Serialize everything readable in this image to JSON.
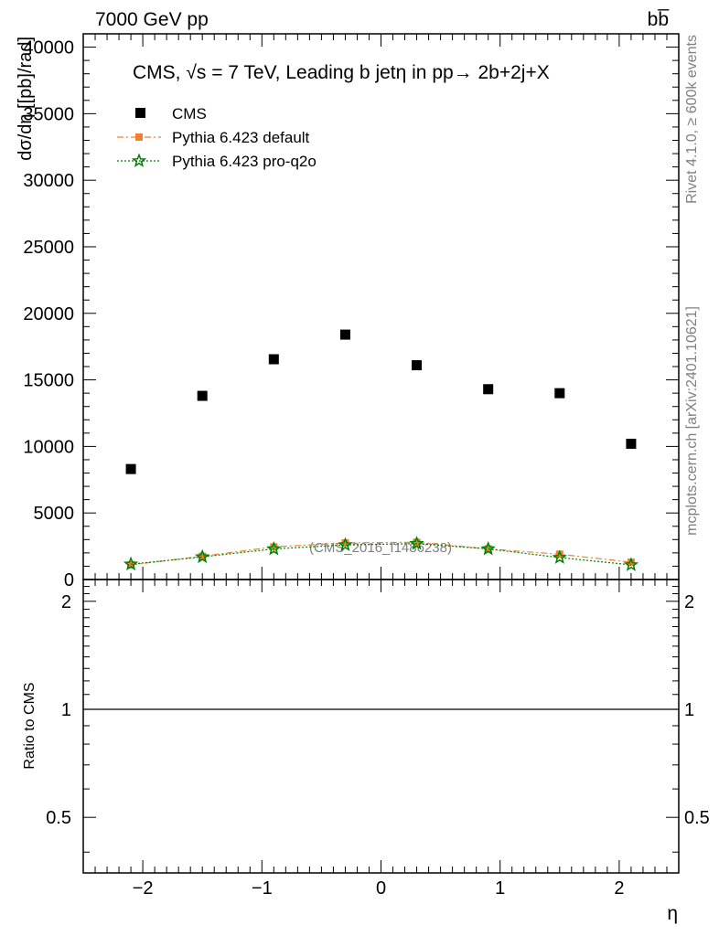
{
  "header": {
    "left": "7000 GeV pp",
    "right": "bb̅"
  },
  "side_labels": {
    "rivet": "Rivet 4.1.0, ≥ 600k events",
    "mcplots": "mcplots.cern.ch [arXiv:2401.10621]"
  },
  "chart_data": {
    "type": "scatter",
    "title": "CMS, √s = 7 TeV, Leading b jetη in pp→  2b+2j+X",
    "watermark": "(CMS_2016_I1486238)",
    "xlabel": "η",
    "ylabel": "dσ/dη [[pb]/rad]",
    "ratio_ylabel": "Ratio to CMS",
    "xlim": [
      -2.5,
      2.5
    ],
    "ylim": [
      0,
      41000
    ],
    "ratio_ylim": [
      0.35,
      2.3
    ],
    "x_ticks": [
      -2,
      -1,
      0,
      1,
      2
    ],
    "x_tick_labels": [
      "−2",
      "−1",
      "0",
      "1",
      "2"
    ],
    "y_ticks": [
      0,
      5000,
      10000,
      15000,
      20000,
      25000,
      30000,
      35000,
      40000
    ],
    "y_tick_labels": [
      "0",
      "5000",
      "10000",
      "15000",
      "20000",
      "25000",
      "30000",
      "35000",
      "40000"
    ],
    "ratio_ticks": [
      0.5,
      1,
      2
    ],
    "ratio_tick_labels": [
      "0.5",
      "1",
      "2"
    ],
    "x": [
      -2.1,
      -1.5,
      -0.9,
      -0.3,
      0.3,
      0.9,
      1.5,
      2.1
    ],
    "series": [
      {
        "name": "CMS",
        "color": "#000000",
        "marker": "square",
        "values": [
          8300,
          13800,
          16550,
          18400,
          16100,
          14300,
          14000,
          10200
        ]
      },
      {
        "name": "Pythia 6.423 default",
        "color": "#f08030",
        "marker": "filled-square",
        "line": "dash-dot",
        "values": [
          1100,
          1750,
          2450,
          2750,
          2800,
          2300,
          1900,
          1300
        ]
      },
      {
        "name": "Pythia 6.423 pro-q2o",
        "color": "#008000",
        "marker": "open-star",
        "line": "dotted",
        "values": [
          1150,
          1700,
          2300,
          2600,
          2700,
          2300,
          1650,
          1100
        ]
      }
    ]
  }
}
